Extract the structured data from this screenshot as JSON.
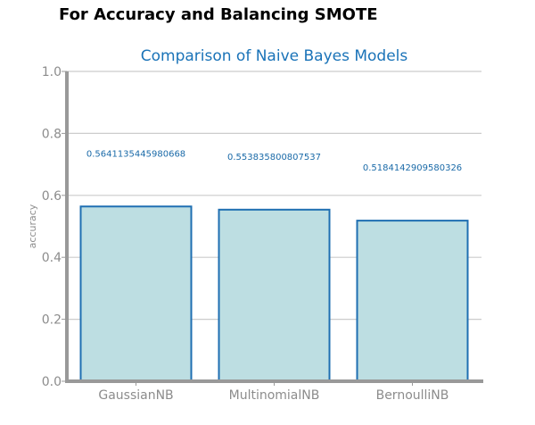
{
  "heading": "For Accuracy and Balancing SMOTE",
  "chart_data": {
    "type": "bar",
    "title": "Comparison of Naive Bayes Models",
    "xlabel": "",
    "ylabel": "accuracy",
    "categories": [
      "GaussianNB",
      "MultinomialNB",
      "BernoulliNB"
    ],
    "values": [
      0.5641135445980668,
      0.553835800807537,
      0.5184142909580326
    ],
    "data_labels": [
      "0.5641135445980668",
      "0.553835800807537",
      "0.5184142909580326"
    ],
    "ylim": [
      0,
      1.0
    ],
    "yticks": [
      0.0,
      0.2,
      0.4,
      0.6,
      0.8,
      1.0
    ],
    "ytick_labels": [
      "0.0",
      "0.2",
      "0.4",
      "0.6",
      "0.8",
      "1.0"
    ],
    "grid": true,
    "colors": {
      "bar_fill": "#bddee2",
      "bar_edge": "#1f6fb2",
      "title": "#1a73b8",
      "data_label": "#1a6aa8",
      "grid": "#cccccc",
      "axis": "#999999"
    }
  }
}
